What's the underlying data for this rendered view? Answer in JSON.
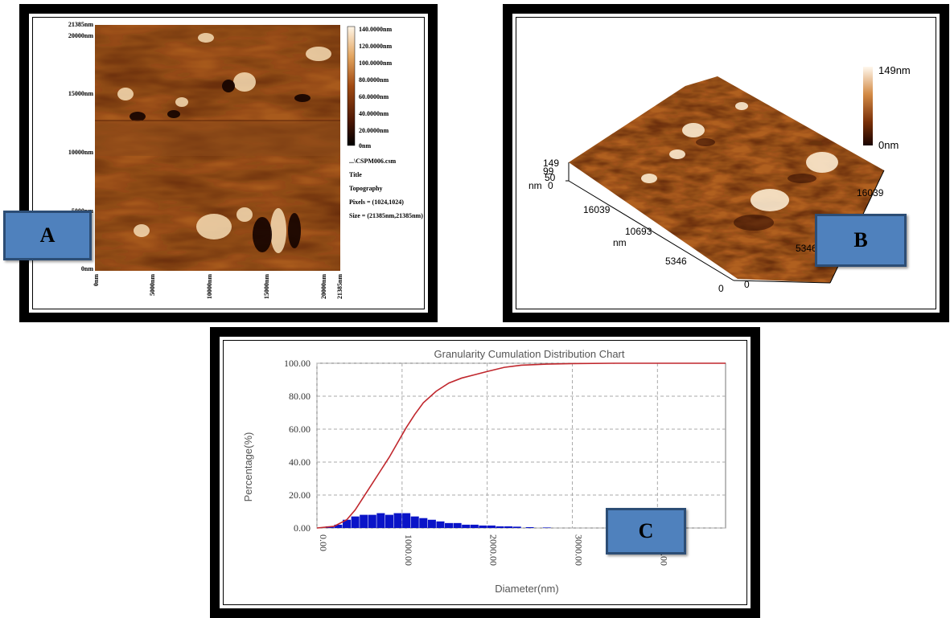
{
  "panel_a": {
    "label": "A",
    "y_ticks": [
      "21385nm",
      "20000nm",
      "15000nm",
      "10000nm",
      "5000nm",
      "0nm"
    ],
    "x_ticks": [
      "0nm",
      "5000nm",
      "10000nm",
      "15000nm",
      "20000nm",
      "21385nm"
    ],
    "colorbar_ticks": [
      "140.0000nm",
      "120.0000nm",
      "100.0000nm",
      "80.0000nm",
      "60.0000nm",
      "40.0000nm",
      "20.0000nm",
      "0nm"
    ],
    "info": [
      "...\\CSPM006.csm",
      "Title",
      "Topography",
      "Pixels = (1024,1024)",
      "Size = (21385nm,21385nm)"
    ]
  },
  "panel_b": {
    "label": "B",
    "colorbar_max": "149nm",
    "colorbar_min": "0nm",
    "z_ticks": [
      "149",
      "99",
      "50",
      "0"
    ],
    "z_unit": "nm",
    "left_axis_ticks": [
      "16039",
      "10693",
      "5346",
      "0"
    ],
    "left_axis_unit": "nm",
    "right_axis_ticks": [
      "16039",
      "5346",
      "0"
    ]
  },
  "panel_c": {
    "label": "C",
    "chart_data": {
      "type": "line",
      "title": "Granularity Cumulation Distribution  Chart",
      "xlabel": "Diameter(nm)",
      "ylabel": "Percentage(%)",
      "xlim": [
        0,
        4800
      ],
      "ylim": [
        0,
        100
      ],
      "x_tick_labels": [
        "0.00",
        "1000.00",
        "2000.00",
        "3000.00",
        "4000.00"
      ],
      "y_tick_labels": [
        "0.00",
        "20.00",
        "40.00",
        "60.00",
        "80.00",
        "100.00"
      ],
      "grid": true,
      "series": [
        {
          "type": "line",
          "color": "#c0272d",
          "x": [
            0,
            200,
            350,
            450,
            550,
            650,
            750,
            850,
            950,
            1050,
            1150,
            1250,
            1400,
            1550,
            1700,
            1850,
            2000,
            2200,
            2400,
            2700,
            3000,
            3500,
            4000,
            4800
          ],
          "y": [
            0,
            1,
            5,
            11,
            19,
            27,
            35,
            43,
            52,
            61,
            69,
            76,
            83,
            88,
            91,
            93,
            95,
            97.5,
            98.8,
            99.5,
            99.8,
            100,
            100,
            100
          ]
        },
        {
          "type": "bar",
          "color": "#0a14c8",
          "x": [
            150,
            250,
            350,
            450,
            550,
            650,
            750,
            850,
            950,
            1050,
            1150,
            1250,
            1350,
            1450,
            1550,
            1650,
            1750,
            1850,
            1950,
            2050,
            2150,
            2250,
            2350,
            2500,
            2700
          ],
          "y": [
            1,
            2,
            5,
            7,
            8,
            8,
            9,
            8,
            9,
            9,
            7,
            6,
            5,
            4,
            3,
            3,
            2,
            2,
            1.5,
            1.5,
            1,
            1,
            0.8,
            0.5,
            0.3
          ]
        }
      ]
    }
  }
}
